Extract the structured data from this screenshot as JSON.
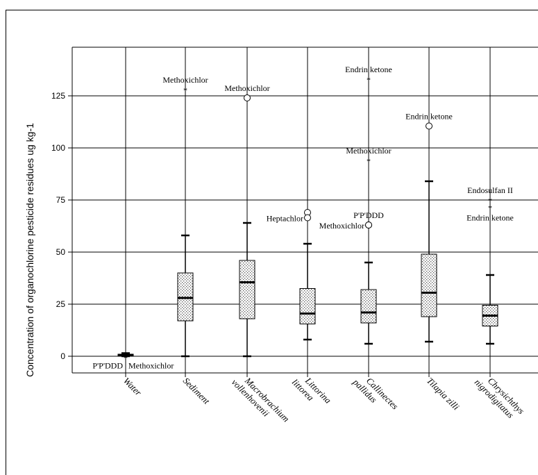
{
  "chart_data": {
    "type": "box",
    "title": "",
    "ylabel": "Concentration of organochlorine pesticide residues ug kg-1",
    "xlabel": "",
    "ylim": [
      -8,
      148
    ],
    "yticks": [
      0,
      25,
      50,
      75,
      100,
      125
    ],
    "grid": "horizontal and vertical",
    "categories": [
      "Water",
      "Sediment",
      "Macrobrachium vollenhovenii",
      "Littorina littorea",
      "Callinectes pallidus",
      "Tilapia zilli",
      "Chrysichthys nigrodigitatus"
    ],
    "boxes": [
      {
        "category": "Water",
        "whisker_low": 0,
        "q1": 0,
        "median": 0.5,
        "q3": 1,
        "whisker_high": 1.5
      },
      {
        "category": "Sediment",
        "whisker_low": 0,
        "q1": 17,
        "median": 28,
        "q3": 40,
        "whisker_high": 58
      },
      {
        "category": "Macrobrachium vollenhovenii",
        "whisker_low": 0,
        "q1": 18,
        "median": 35.5,
        "q3": 46,
        "whisker_high": 64
      },
      {
        "category": "Littorina littorea",
        "whisker_low": 8,
        "q1": 15.5,
        "median": 20.5,
        "q3": 32.5,
        "whisker_high": 54
      },
      {
        "category": "Callinectes pallidus",
        "whisker_low": 6,
        "q1": 16,
        "median": 21,
        "q3": 32,
        "whisker_high": 45
      },
      {
        "category": "Tilapia zilli",
        "whisker_low": 7,
        "q1": 19,
        "median": 30.5,
        "q3": 49,
        "whisker_high": 84
      },
      {
        "category": "Chrysichthys nigrodigitatus",
        "whisker_low": 6,
        "q1": 14.5,
        "median": 19.5,
        "q3": 24.5,
        "whisker_high": 39
      }
    ],
    "outliers": [
      {
        "category": "Water",
        "value": -0.5,
        "marker": "star",
        "label": "P'P'DDD",
        "side": "left"
      },
      {
        "category": "Water",
        "value": -0.5,
        "marker": "star",
        "label": "Methoxichlor",
        "side": "right"
      },
      {
        "category": "Sediment",
        "value": 128,
        "marker": "star",
        "label": "Methoxichlor",
        "side": "above"
      },
      {
        "category": "Macrobrachium vollenhovenii",
        "value": 124,
        "marker": "circle",
        "label": "Methoxichlor",
        "side": "above"
      },
      {
        "category": "Littorina littorea",
        "value": 69,
        "marker": "circle",
        "label": "",
        "side": "none"
      },
      {
        "category": "Littorina littorea",
        "value": 66.5,
        "marker": "circle",
        "label": "Heptachlor",
        "side": "left"
      },
      {
        "category": "Callinectes pallidus",
        "value": 133,
        "marker": "star",
        "label": "Endrin ketone",
        "side": "above"
      },
      {
        "category": "Callinectes pallidus",
        "value": 94,
        "marker": "star",
        "label": "Methoxichlor",
        "side": "above"
      },
      {
        "category": "Callinectes pallidus",
        "value": 63,
        "marker": "circle",
        "label": "P'P'DDD",
        "side": "above"
      },
      {
        "category": "Callinectes pallidus",
        "value": 63,
        "marker": "circle",
        "label": "Methoxichlor",
        "side": "left"
      },
      {
        "category": "Tilapia zilli",
        "value": 110.5,
        "marker": "circle",
        "label": "Endrin ketone",
        "side": "above"
      },
      {
        "category": "Chrysichthys nigrodigitatus",
        "value": 75,
        "marker": "star",
        "label": "Endosulfan II",
        "side": "above"
      },
      {
        "category": "Chrysichthys nigrodigitatus",
        "value": 71.5,
        "marker": "star",
        "label": "Endrin ketone",
        "side": "below"
      }
    ]
  }
}
